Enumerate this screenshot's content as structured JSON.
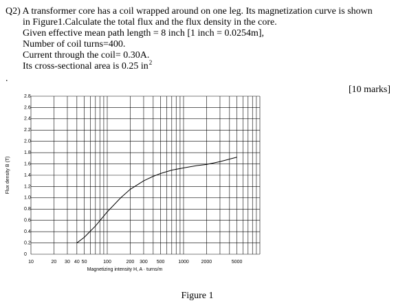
{
  "question": {
    "lines": [
      "Q2) A transformer core has a coil wrapped around on one leg. Its magnetization curve is shown",
      "in Figure1.Calculate the total flux and the flux density in the core.",
      "Given effective mean path length = 8 inch [1 inch = 0.0254m],",
      "Number of coil turns=400.",
      "Current through the coil= 0.30A.",
      "Its cross-sectional area is 0.25 in"
    ],
    "superscript": "2",
    "bullet": ".",
    "marks": "[10 marks]"
  },
  "caption": "Figure 1",
  "chart_data": {
    "type": "line",
    "xlabel": "Magnetizing intensity H, A · turns/m",
    "ylabel": "Flux density B (T)",
    "xscale": "log",
    "grid": true,
    "xlim": [
      10,
      10000
    ],
    "ylim": [
      0,
      2.8
    ],
    "xticks": [
      10,
      20,
      30,
      40,
      50,
      100,
      200,
      300,
      500,
      1000,
      2000,
      5000
    ],
    "xgrid": [
      10,
      20,
      30,
      40,
      50,
      60,
      70,
      80,
      90,
      100,
      200,
      300,
      400,
      500,
      600,
      700,
      800,
      900,
      1000,
      2000,
      3000,
      4000,
      5000,
      6000,
      7000,
      8000,
      9000,
      10000
    ],
    "yticks": [
      0,
      0.2,
      0.4,
      0.6,
      0.8,
      {
        "value": 1,
        "label": "1.0"
      },
      1.2,
      1.4,
      1.6,
      1.8,
      {
        "value": 2,
        "label": "2.0"
      },
      2.2,
      2.4,
      2.6,
      2.8
    ],
    "series": [
      {
        "color": "#000000",
        "x": [
          40,
          50,
          70,
          100,
          150,
          200,
          300,
          400,
          500,
          700,
          1000,
          1500,
          2000,
          3000,
          5000
        ],
        "values": [
          0.2,
          0.3,
          0.5,
          0.75,
          1.0,
          1.15,
          1.3,
          1.38,
          1.43,
          1.49,
          1.53,
          1.57,
          1.59,
          1.64,
          1.72
        ]
      }
    ]
  }
}
